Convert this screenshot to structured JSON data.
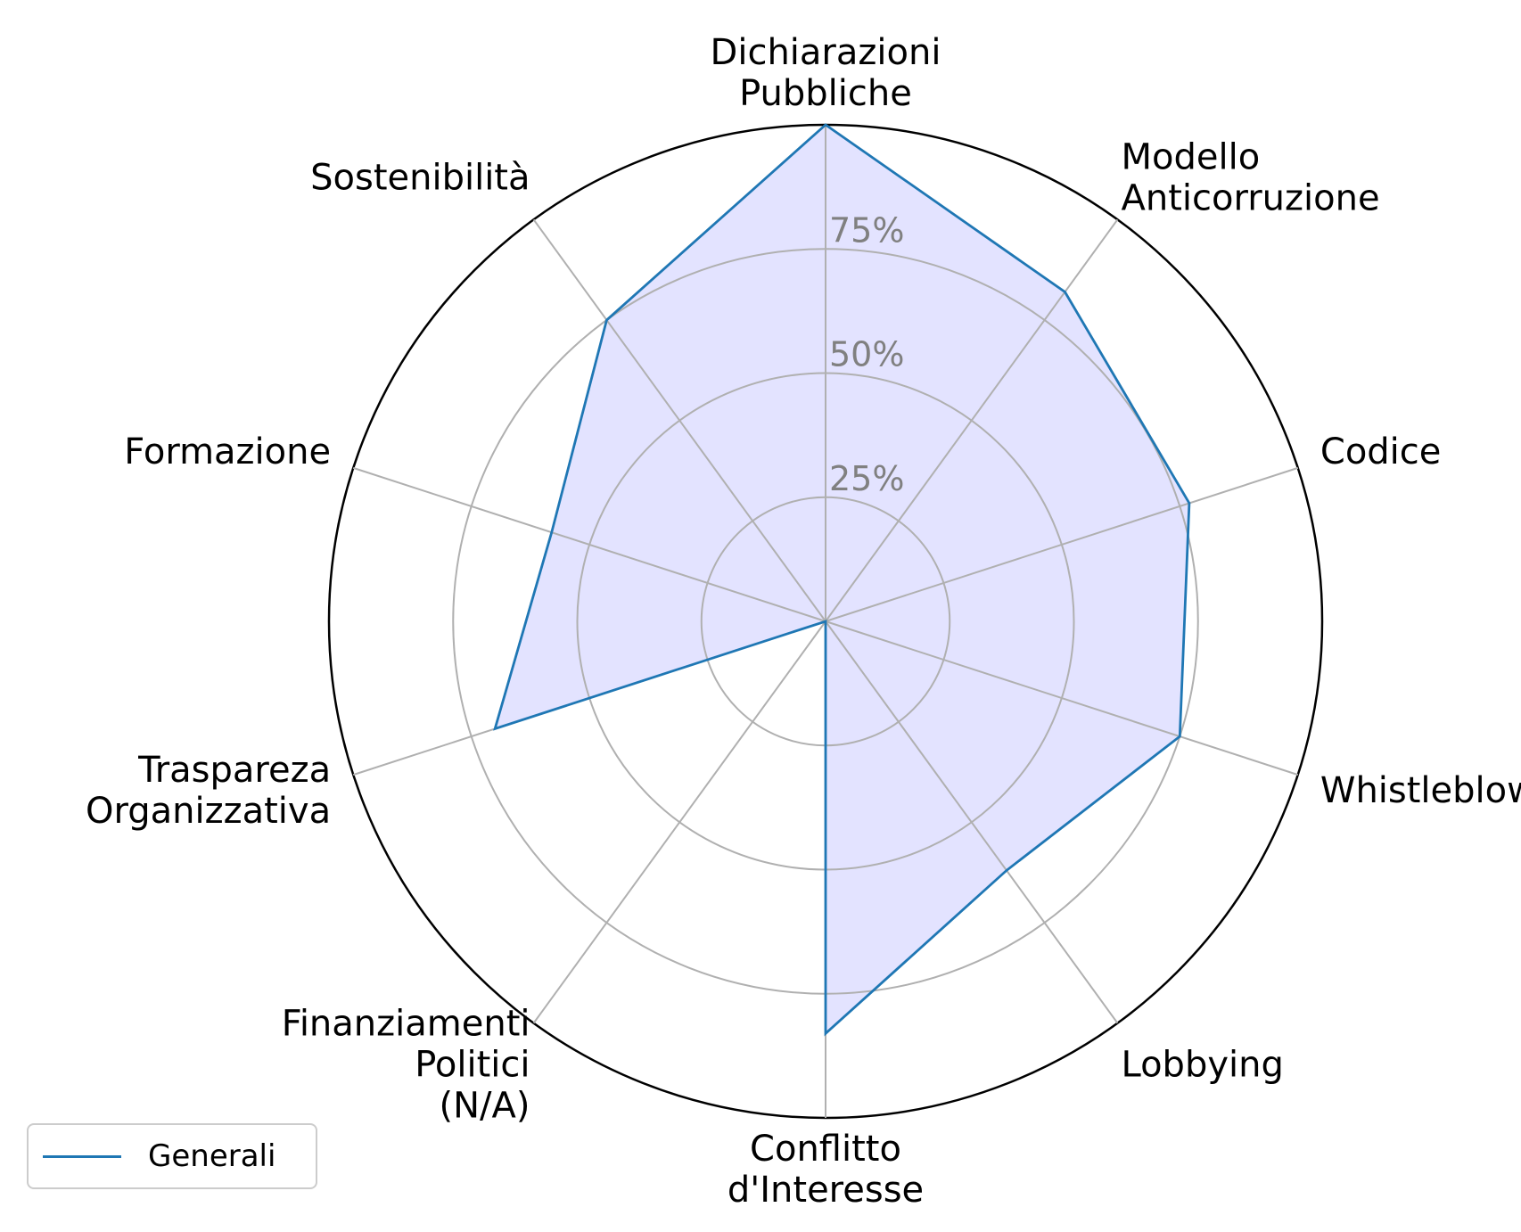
{
  "chart_data": {
    "type": "radar",
    "categories": [
      "Dichiarazioni\nPubbliche",
      "Modello\nAnticorruzione",
      "Codice",
      "Whistleblowing",
      "Lobbying",
      "Conflitto\nd'Interesse",
      "Finanziamenti\nPolitici\n(N/A)",
      "Traspareza\nOrganizzativa",
      "Formazione",
      "Sostenibilità"
    ],
    "series": [
      {
        "name": "Generali",
        "values": [
          100,
          82,
          77,
          75,
          62,
          83,
          0,
          70,
          58,
          75
        ]
      }
    ],
    "rlim": [
      0,
      100
    ],
    "r_ticks": [
      25,
      50,
      75,
      100
    ],
    "r_tick_labels": [
      "25%",
      "50%",
      "75%",
      ""
    ],
    "grid": true,
    "legend_position": "bottom-left",
    "colors": {
      "line": "#1f77b4",
      "fill": "#e3e3ff",
      "grid": "#b0b0b0",
      "outer": "#000000",
      "tick_text": "#808080"
    }
  },
  "legend": {
    "label": "Generali"
  }
}
